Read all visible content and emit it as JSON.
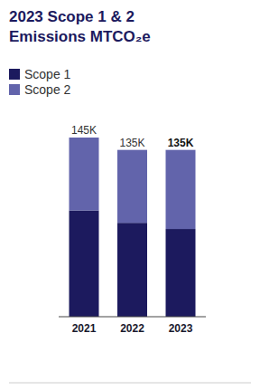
{
  "chart_data": {
    "type": "bar",
    "stacked": true,
    "title": "2023 Scope 1 & 2 Emissions MTCO₂e",
    "categories": [
      "2021",
      "2022",
      "2023"
    ],
    "series": [
      {
        "name": "Scope 1",
        "color": "#1c1a5e",
        "values": [
          86000,
          76000,
          71000
        ]
      },
      {
        "name": "Scope 2",
        "color": "#6264ab",
        "values": [
          59000,
          59000,
          64000
        ]
      }
    ],
    "totals": [
      145000,
      135000,
      135000
    ],
    "total_labels": [
      "145K",
      "135K",
      "135K"
    ],
    "ylim": [
      0,
      145000
    ],
    "tick_labels": "x",
    "legend": "top-left"
  }
}
